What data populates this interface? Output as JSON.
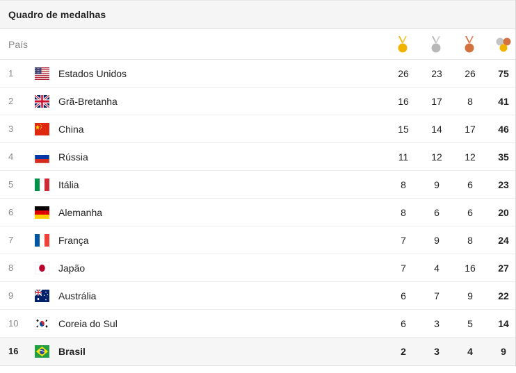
{
  "widget": {
    "title": "Quadro de medalhas",
    "column_country": "País",
    "icons": [
      "gold-medal-icon",
      "silver-medal-icon",
      "bronze-medal-icon",
      "total-medals-icon"
    ]
  },
  "colors": {
    "gold": "#f0b400",
    "silver": "#b8b8b8",
    "bronze": "#d3713f"
  },
  "rows": [
    {
      "rank": "1",
      "country": "Estados Unidos",
      "gold": "26",
      "silver": "23",
      "bronze": "26",
      "total": "75",
      "flag": "us"
    },
    {
      "rank": "2",
      "country": "Grã-Bretanha",
      "gold": "16",
      "silver": "17",
      "bronze": "8",
      "total": "41",
      "flag": "gb"
    },
    {
      "rank": "3",
      "country": "China",
      "gold": "15",
      "silver": "14",
      "bronze": "17",
      "total": "46",
      "flag": "cn"
    },
    {
      "rank": "4",
      "country": "Rússia",
      "gold": "11",
      "silver": "12",
      "bronze": "12",
      "total": "35",
      "flag": "ru"
    },
    {
      "rank": "5",
      "country": "Itália",
      "gold": "8",
      "silver": "9",
      "bronze": "6",
      "total": "23",
      "flag": "it"
    },
    {
      "rank": "6",
      "country": "Alemanha",
      "gold": "8",
      "silver": "6",
      "bronze": "6",
      "total": "20",
      "flag": "de"
    },
    {
      "rank": "7",
      "country": "França",
      "gold": "7",
      "silver": "9",
      "bronze": "8",
      "total": "24",
      "flag": "fr"
    },
    {
      "rank": "8",
      "country": "Japão",
      "gold": "7",
      "silver": "4",
      "bronze": "16",
      "total": "27",
      "flag": "jp"
    },
    {
      "rank": "9",
      "country": "Austrália",
      "gold": "6",
      "silver": "7",
      "bronze": "9",
      "total": "22",
      "flag": "au"
    },
    {
      "rank": "10",
      "country": "Coreia do Sul",
      "gold": "6",
      "silver": "3",
      "bronze": "5",
      "total": "14",
      "flag": "kr"
    }
  ],
  "highlight": {
    "rank": "16",
    "country": "Brasil",
    "gold": "2",
    "silver": "3",
    "bronze": "4",
    "total": "9",
    "flag": "br"
  }
}
